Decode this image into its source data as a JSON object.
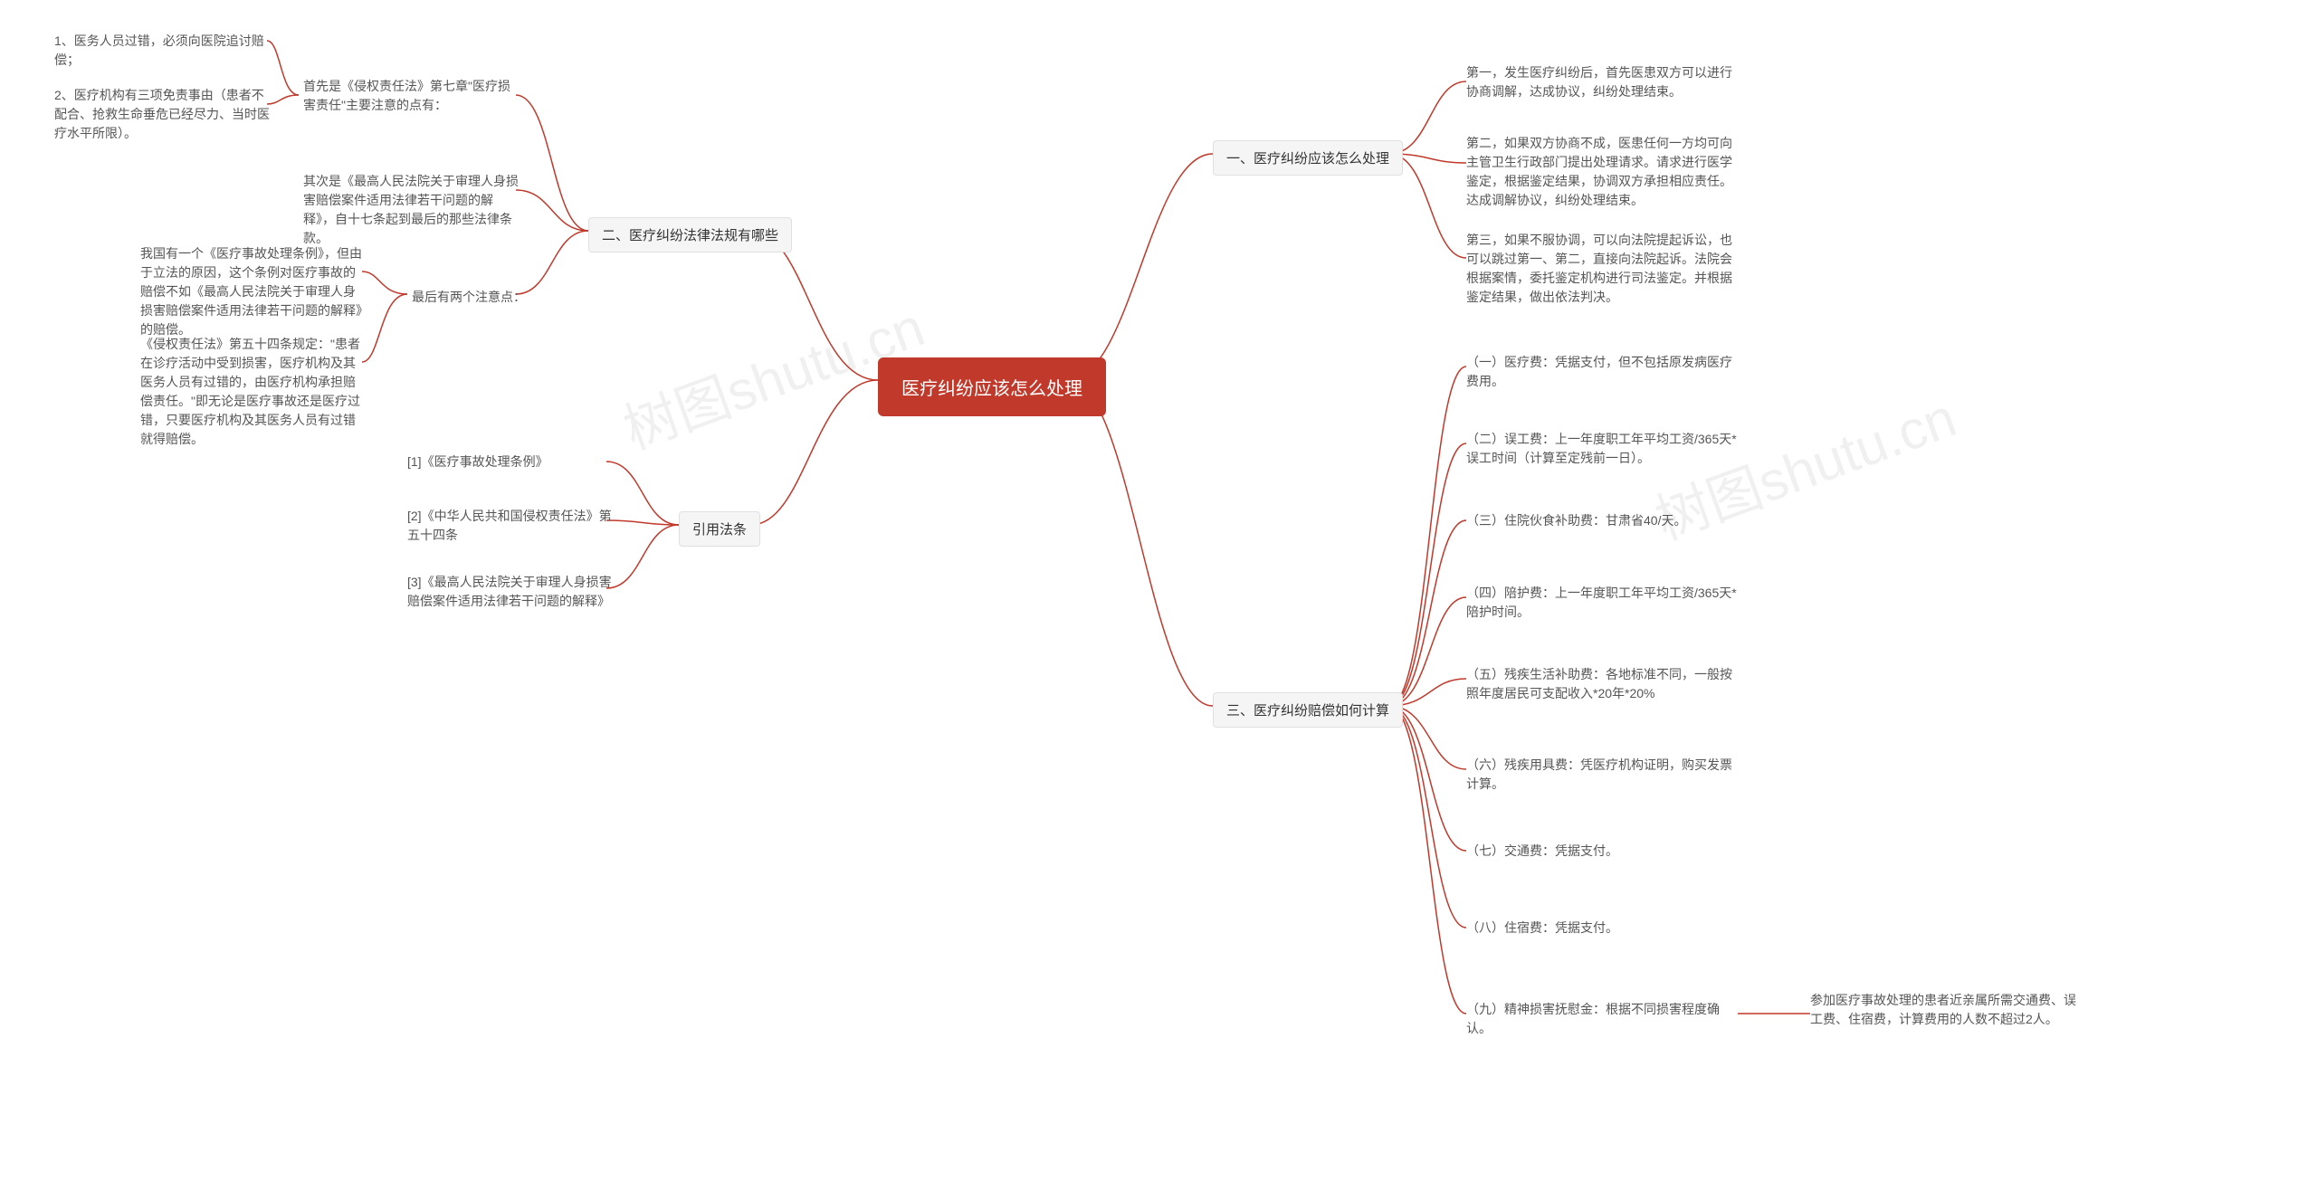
{
  "colors": {
    "root_bg": "#c0392b",
    "root_text": "#ffffff",
    "branch_bg": "#f5f5f5",
    "branch_border": "#e0e0e0",
    "branch_text": "#333333",
    "leaf_text": "#555555",
    "connector": "#c0392b",
    "background": "#ffffff",
    "watermark": "rgba(0,0,0,0.06)"
  },
  "typography": {
    "root_fontsize": 20,
    "branch_fontsize": 15,
    "leaf_fontsize": 14,
    "font_family": "Microsoft YaHei"
  },
  "watermark_text": "树图shutu.cn",
  "root": {
    "label": "医疗纠纷应该怎么处理"
  },
  "right_branches": [
    {
      "label": "一、医疗纠纷应该怎么处理",
      "children": [
        {
          "text": "第一，发生医疗纠纷后，首先医患双方可以进行协商调解，达成协议，纠纷处理结束。"
        },
        {
          "text": "第二，如果双方协商不成，医患任何一方均可向主管卫生行政部门提出处理请求。请求进行医学鉴定，根据鉴定结果，协调双方承担相应责任。达成调解协议，纠纷处理结束。"
        },
        {
          "text": "第三，如果不服协调，可以向法院提起诉讼，也可以跳过第一、第二，直接向法院起诉。法院会根据案情，委托鉴定机构进行司法鉴定。并根据鉴定结果，做出依法判决。"
        }
      ]
    },
    {
      "label": "三、医疗纠纷赔偿如何计算",
      "children": [
        {
          "text": "（一）医疗费：凭据支付，但不包括原发病医疗费用。"
        },
        {
          "text": "（二）误工费：上一年度职工年平均工资/365天*误工时间（计算至定残前一日）。"
        },
        {
          "text": "（三）住院伙食补助费：甘肃省40/天。"
        },
        {
          "text": "（四）陪护费：上一年度职工年平均工资/365天*陪护时间。"
        },
        {
          "text": "（五）残疾生活补助费：各地标准不同，一般按照年度居民可支配收入*20年*20%"
        },
        {
          "text": "（六）残疾用具费：凭医疗机构证明，购买发票计算。"
        },
        {
          "text": "（七）交通费：凭据支付。"
        },
        {
          "text": "（八）住宿费：凭据支付。"
        },
        {
          "text": "（九）精神损害抚慰金：根据不同损害程度确认。",
          "children": [
            {
              "text": "参加医疗事故处理的患者近亲属所需交通费、误工费、住宿费，计算费用的人数不超过2人。"
            }
          ]
        }
      ]
    }
  ],
  "left_branches": [
    {
      "label": "二、医疗纠纷法律法规有哪些",
      "children": [
        {
          "text": "首先是《侵权责任法》第七章\"医疗损害责任\"主要注意的点有：",
          "children": [
            {
              "text": "1、医务人员过错，必须向医院追讨赔偿；"
            },
            {
              "text": "2、医疗机构有三项免责事由（患者不配合、抢救生命垂危已经尽力、当时医疗水平所限）。"
            }
          ]
        },
        {
          "text": "其次是《最高人民法院关于审理人身损害赔偿案件适用法律若干问题的解释》，自十七条起到最后的那些法律条款。"
        },
        {
          "text": "最后有两个注意点：",
          "children": [
            {
              "text": "我国有一个《医疗事故处理条例》，但由于立法的原因，这个条例对医疗事故的赔偿不如《最高人民法院关于审理人身损害赔偿案件适用法律若干问题的解释》的赔偿。"
            },
            {
              "text": "《侵权责任法》第五十四条规定：\"患者在诊疗活动中受到损害，医疗机构及其医务人员有过错的，由医疗机构承担赔偿责任。\"即无论是医疗事故还是医疗过错，只要医疗机构及其医务人员有过错就得赔偿。"
            }
          ]
        }
      ]
    },
    {
      "label": "引用法条",
      "children": [
        {
          "text": "[1]《医疗事故处理条例》"
        },
        {
          "text": "[2]《中华人民共和国侵权责任法》第五十四条"
        },
        {
          "text": "[3]《最高人民法院关于审理人身损害赔偿案件适用法律若干问题的解释》"
        }
      ]
    }
  ]
}
